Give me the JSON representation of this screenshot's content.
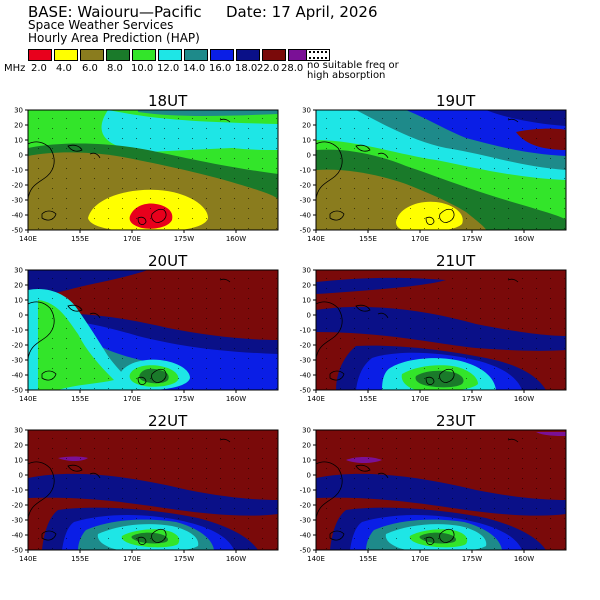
{
  "header": {
    "base": "BASE: Waiouru—Pacific",
    "date": "Date:  17 April, 2026",
    "org": "Space Weather Services",
    "product": "Hourly Area Prediction (HAP)"
  },
  "legend": {
    "unit": "MHz",
    "items": [
      {
        "label": "2.0",
        "color": "#e8001c"
      },
      {
        "label": "4.0",
        "color": "#ffff00"
      },
      {
        "label": "6.0",
        "color": "#8a7c1e"
      },
      {
        "label": "8.0",
        "color": "#1a7a2a"
      },
      {
        "label": "10.0",
        "color": "#33e52a"
      },
      {
        "label": "12.0",
        "color": "#1ee6e6"
      },
      {
        "label": "14.0",
        "color": "#1e8a8a"
      },
      {
        "label": "16.0",
        "color": "#0a1ee6"
      },
      {
        "label": "18.0",
        "color": "#0a1088"
      },
      {
        "label": "22.0",
        "color": "#7a0a0a"
      },
      {
        "label": "28.0",
        "color": "#7a1096"
      }
    ],
    "no_info_line1": "no suitable freq or",
    "no_info_line2": "high absorption"
  },
  "axes": {
    "y_ticks": [
      "30",
      "20",
      "10",
      "0",
      "-10",
      "-20",
      "-30",
      "-40",
      "-50"
    ],
    "x_ticks": [
      "140E",
      "155E",
      "170E",
      "175W",
      "160W"
    ]
  },
  "panels": [
    {
      "time": "18UT"
    },
    {
      "time": "19UT"
    },
    {
      "time": "20UT"
    },
    {
      "time": "21UT"
    },
    {
      "time": "22UT"
    },
    {
      "time": "23UT"
    }
  ]
}
